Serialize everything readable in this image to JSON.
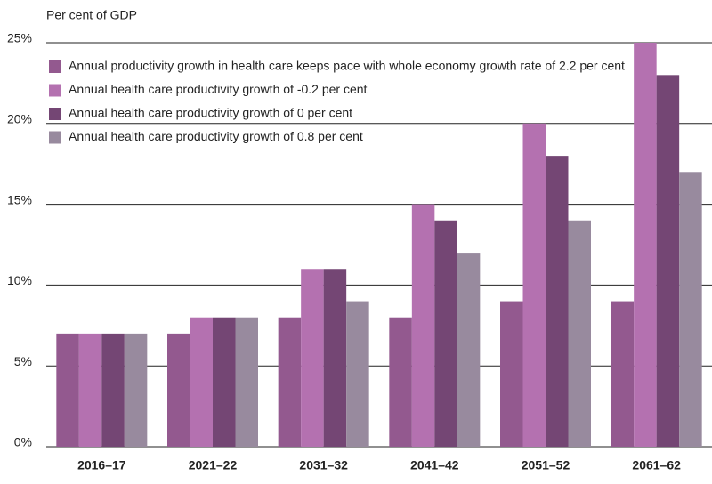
{
  "chart_data": {
    "type": "bar",
    "y_axis_label": "Per cent of GDP",
    "categories": [
      "2016–17",
      "2021–22",
      "2031–32",
      "2041–42",
      "2051–52",
      "2061–62"
    ],
    "series": [
      {
        "name": "Annual productivity growth in health care keeps pace with whole economy growth rate of 2.2 per cent",
        "color": "#93598f",
        "values": [
          7,
          7,
          8,
          8,
          9,
          9
        ]
      },
      {
        "name": "Annual health care productivity growth of -0.2 per cent",
        "color": "#b471b0",
        "values": [
          7,
          8,
          11,
          15,
          20,
          25
        ]
      },
      {
        "name": "Annual health care productivity growth of 0 per cent",
        "color": "#744674",
        "values": [
          7,
          8,
          11,
          14,
          18,
          23
        ]
      },
      {
        "name": "Annual health care productivity growth of 0.8 per cent",
        "color": "#988a9e",
        "values": [
          7,
          8,
          9,
          12,
          14,
          17
        ]
      }
    ],
    "ylim": [
      0,
      25
    ],
    "yticks": [
      {
        "value": 0,
        "label": "0%"
      },
      {
        "value": 5,
        "label": "5%"
      },
      {
        "value": 10,
        "label": "10%"
      },
      {
        "value": 15,
        "label": "15%"
      },
      {
        "value": 20,
        "label": "20%"
      },
      {
        "value": 25,
        "label": "25%"
      }
    ],
    "grid": true,
    "legend": "upper left"
  }
}
